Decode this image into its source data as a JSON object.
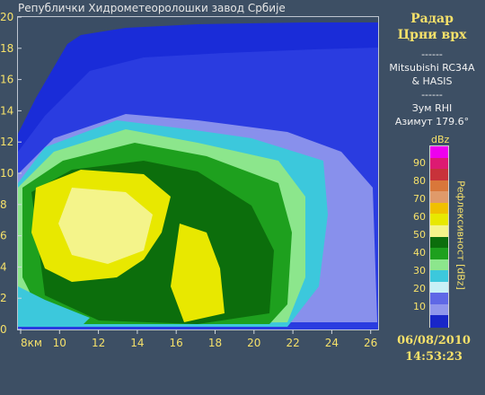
{
  "header": {
    "institution": "Републички Хидрометеоролошки завод Србије"
  },
  "sidebar": {
    "title_line1": "Радар",
    "title_line2": "Црни врх",
    "sep1": "------",
    "radar_line1": "Mitsubishi RC34A",
    "radar_line2": "& HASIS",
    "sep2": "------",
    "mode": "Зум RHI",
    "azimuth": "Азимут 179.6°"
  },
  "colorbar": {
    "unit": "dBz",
    "axis_label": "Рефлексивност [dBz]",
    "labels": [
      "90",
      "80",
      "70",
      "60",
      "50",
      "40",
      "30",
      "20",
      "10"
    ],
    "colors": [
      "#ee00ee",
      "#dd1a72",
      "#c8323a",
      "#d9773a",
      "#e09a6a",
      "#f0c000",
      "#e8e800",
      "#f4f48a",
      "#0c6e0c",
      "#1ea01e",
      "#8ce68c",
      "#3cc8dc",
      "#c8f0f6",
      "#5f68e6",
      "#9096ec",
      "#1826c8"
    ]
  },
  "plot": {
    "y_ticks": [
      "20",
      "18",
      "16",
      "14",
      "12",
      "10",
      "8",
      "6",
      "4",
      "2",
      "0"
    ],
    "x_ticks": [
      "8км",
      "10",
      "12",
      "14",
      "16",
      "18",
      "20",
      "22",
      "24",
      "26"
    ]
  },
  "timestamp": {
    "date": "06/08/2010",
    "time": "14:53:23"
  }
}
